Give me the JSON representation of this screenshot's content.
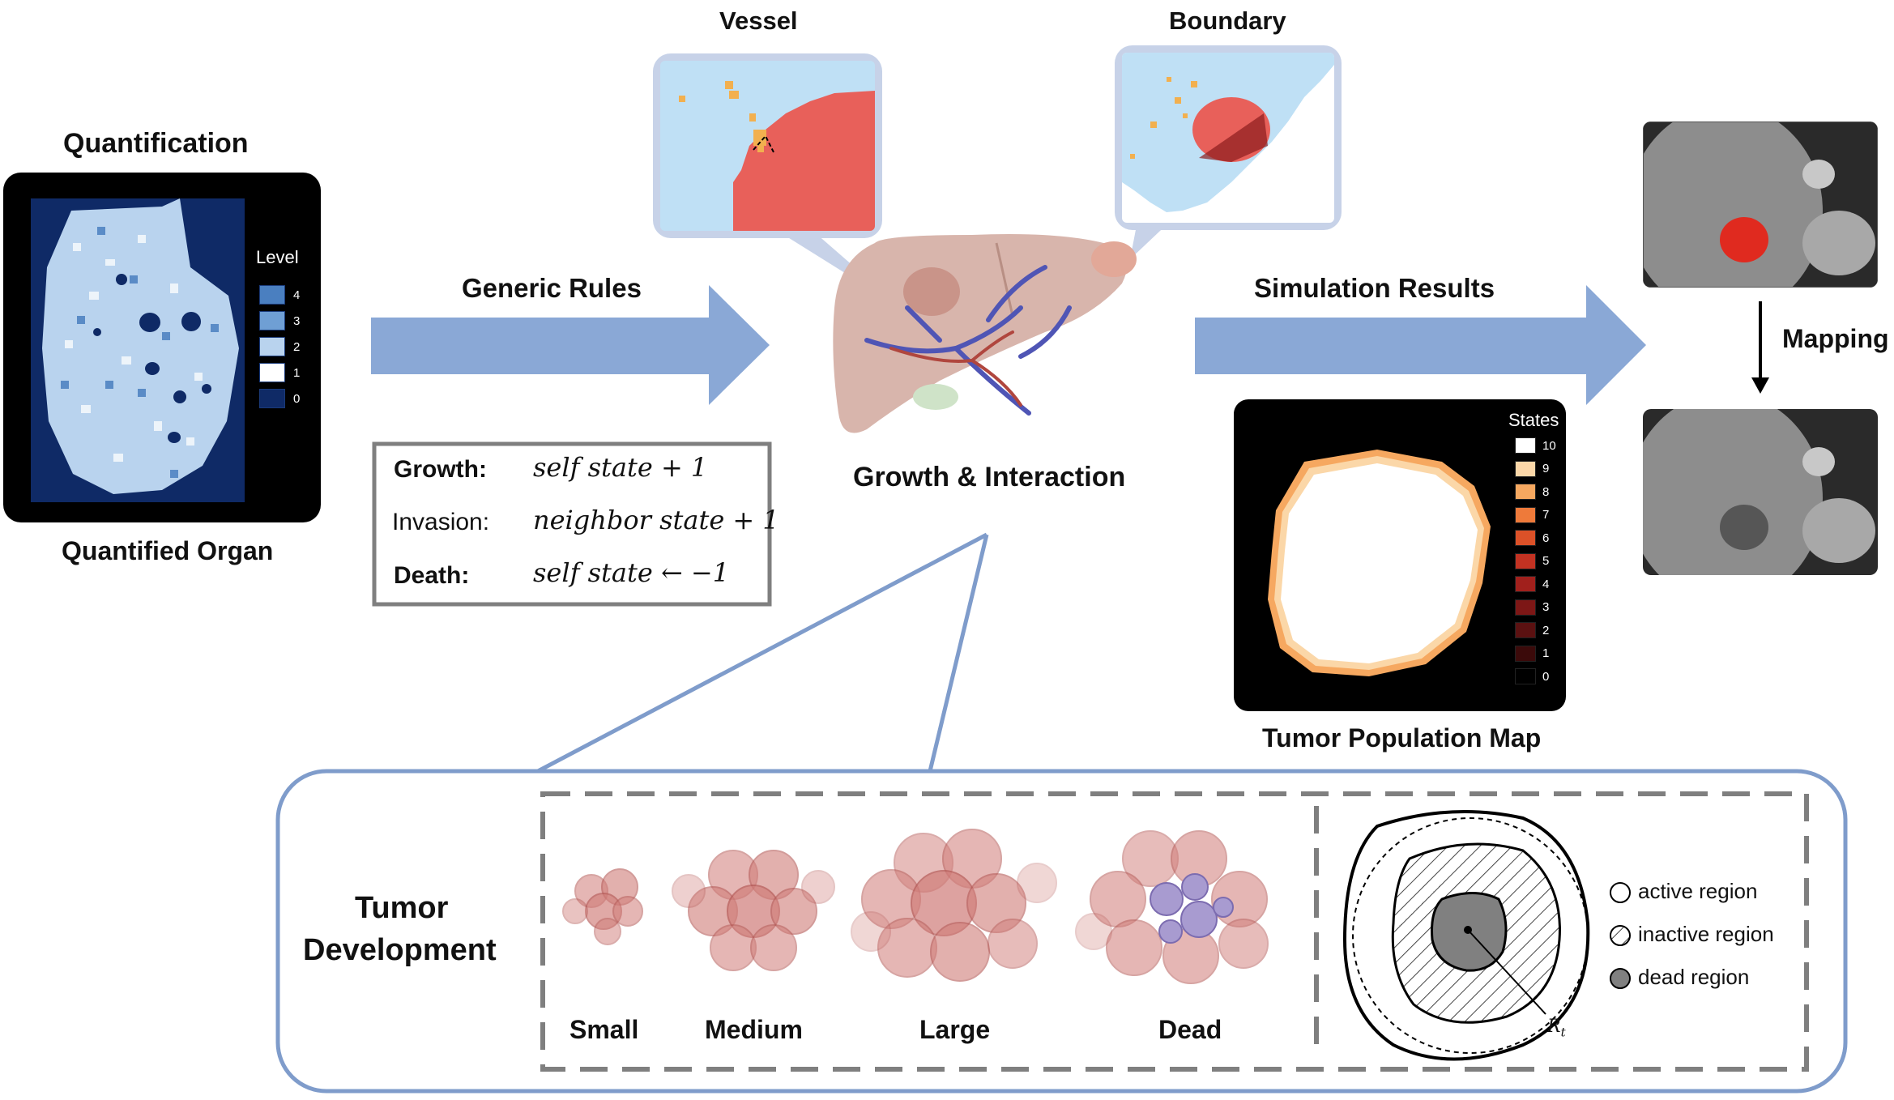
{
  "quantification": {
    "title": "Quantification",
    "caption": "Quantified Organ",
    "legend_title": "Level",
    "levels": [
      {
        "label": "4",
        "color": "#4a7fc0"
      },
      {
        "label": "3",
        "color": "#6f9fd4"
      },
      {
        "label": "2",
        "color": "#b9d3ee"
      },
      {
        "label": "1",
        "color": "#ffffff"
      },
      {
        "label": "0",
        "color": "#0f2a66"
      }
    ]
  },
  "arrows": {
    "generic_rules": "Generic Rules",
    "simulation_results": "Simulation Results",
    "mapping": "Mapping"
  },
  "rules": {
    "growth_label": "Growth:",
    "growth_expr": "self state + 1",
    "invasion_label": "Invasion:",
    "invasion_expr": "neighbor state + 1",
    "death_label": "Death:",
    "death_expr": "self state ← −1"
  },
  "center": {
    "vessel": "Vessel",
    "boundary": "Boundary",
    "caption": "Growth & Interaction"
  },
  "population_map": {
    "caption": "Tumor Population Map",
    "legend_title": "States",
    "states": [
      {
        "label": "10",
        "color": "#ffffff"
      },
      {
        "label": "9",
        "color": "#fbd7a8"
      },
      {
        "label": "8",
        "color": "#f6a860"
      },
      {
        "label": "7",
        "color": "#ee7a3a"
      },
      {
        "label": "6",
        "color": "#dc5128"
      },
      {
        "label": "5",
        "color": "#c23222"
      },
      {
        "label": "4",
        "color": "#a1201c"
      },
      {
        "label": "3",
        "color": "#7d1716"
      },
      {
        "label": "2",
        "color": "#5b1111"
      },
      {
        "label": "1",
        "color": "#3b0a0a"
      },
      {
        "label": "0",
        "color": "#000000"
      }
    ]
  },
  "development": {
    "title_line1": "Tumor",
    "title_line2": "Development",
    "stages": [
      "Small",
      "Medium",
      "Large",
      "Dead"
    ],
    "regions": [
      {
        "label": "active region",
        "fill": "#ffffff"
      },
      {
        "label": "inactive region",
        "fill": "hatch"
      },
      {
        "label": "dead region",
        "fill": "#808080"
      }
    ],
    "radius_label": "R",
    "radius_subscript": "t"
  },
  "colors": {
    "arrow": "#8aa8d6",
    "frame": "#7f9ccb",
    "organ_bg": "#0f2a66",
    "liver": "#d8b5ac",
    "vessel": "#4f55b5",
    "tumor": "#e8605a"
  }
}
